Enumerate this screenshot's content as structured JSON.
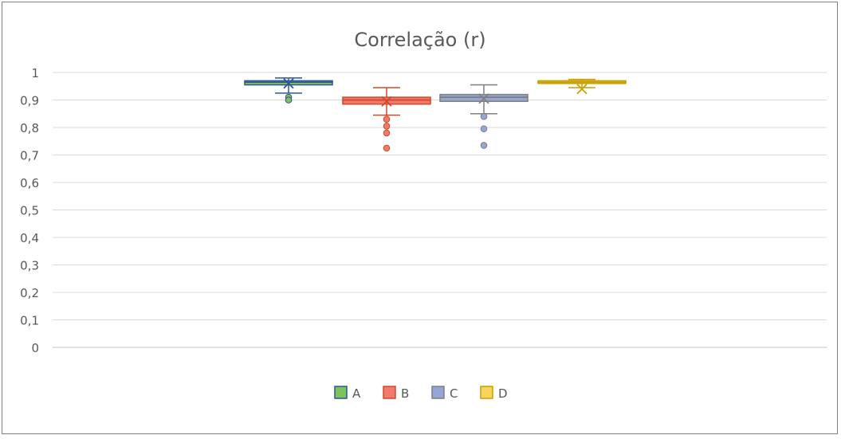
{
  "chart_data": {
    "type": "box",
    "title": "Correlação (r)",
    "xlabel": "",
    "ylabel": "",
    "ylim": [
      0,
      1
    ],
    "yticks": [
      0,
      0.1,
      0.2,
      0.3,
      0.4,
      0.5,
      0.6,
      0.7,
      0.8,
      0.9,
      1
    ],
    "ytick_labels": [
      "0",
      "0,1",
      "0,2",
      "0,3",
      "0,4",
      "0,5",
      "0,6",
      "0,7",
      "0,8",
      "0,9",
      "1"
    ],
    "grid": true,
    "legend_position": "bottom",
    "series": [
      {
        "name": "A",
        "fill": "#7dc35a",
        "stroke": "#2f5597",
        "whisker_min": 0.925,
        "q1": 0.955,
        "median": 0.965,
        "q3": 0.97,
        "whisker_max": 0.98,
        "mean": 0.96,
        "outliers": [
          0.91,
          0.9
        ]
      },
      {
        "name": "B",
        "fill": "#f07a6c",
        "stroke": "#d04a2a",
        "whisker_min": 0.845,
        "q1": 0.885,
        "median": 0.9,
        "q3": 0.91,
        "whisker_max": 0.945,
        "mean": 0.895,
        "outliers": [
          0.83,
          0.805,
          0.78,
          0.725
        ]
      },
      {
        "name": "C",
        "fill": "#93a6d6",
        "stroke": "#7f7f7f",
        "whisker_min": 0.85,
        "q1": 0.895,
        "median": 0.91,
        "q3": 0.92,
        "whisker_max": 0.955,
        "mean": 0.905,
        "outliers": [
          0.84,
          0.795,
          0.735
        ]
      },
      {
        "name": "D",
        "fill": "#f7d35f",
        "stroke": "#c9a000",
        "whisker_min": 0.945,
        "q1": 0.96,
        "median": 0.965,
        "q3": 0.97,
        "whisker_max": 0.975,
        "mean": 0.94,
        "outliers": []
      }
    ]
  }
}
